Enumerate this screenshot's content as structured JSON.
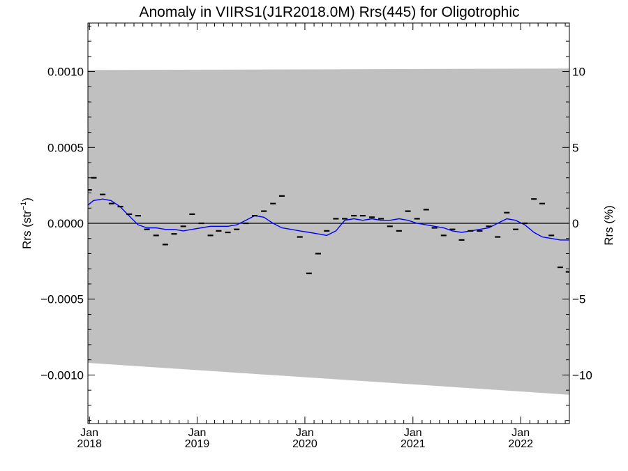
{
  "chart_data": {
    "type": "scatter",
    "title": "Anomaly in VIIRS1(J1R2018.0M) Rrs(445) for Oligotrophic",
    "ylabel_left": "Rrs (str",
    "ylabel_left_sup": "−1",
    "ylabel_left_close": ")",
    "ylabel_right": "Rrs (%)",
    "xlim": [
      "2017-12-27",
      "2022-06-15"
    ],
    "ylim": [
      -0.00132,
      0.00132
    ],
    "ylim_right": [
      -13.2,
      13.2
    ],
    "grid": false,
    "x_ticks": [
      {
        "date": "2018-01-01",
        "line1": "Jan",
        "line2": "2018"
      },
      {
        "date": "2019-01-01",
        "line1": "Jan",
        "line2": "2019"
      },
      {
        "date": "2020-01-01",
        "line1": "Jan",
        "line2": "2020"
      },
      {
        "date": "2021-01-01",
        "line1": "Jan",
        "line2": "2021"
      },
      {
        "date": "2022-01-01",
        "line1": "Jan",
        "line2": "2022"
      }
    ],
    "y_ticks": [
      {
        "value": 0.001,
        "label": "0.0010"
      },
      {
        "value": 0.0005,
        "label": "0.0005"
      },
      {
        "value": 0.0,
        "label": "0.0000"
      },
      {
        "value": -0.0005,
        "label": "−0.0005"
      },
      {
        "value": -0.001,
        "label": "−0.0010"
      }
    ],
    "y_ticks_right": [
      {
        "value": 10,
        "label": "10"
      },
      {
        "value": 5,
        "label": "5"
      },
      {
        "value": 0,
        "label": "0"
      },
      {
        "value": -5,
        "label": "−5"
      },
      {
        "value": -10,
        "label": "−10"
      }
    ],
    "envelope": {
      "x": [
        "2017-12-27",
        "2022-06-15"
      ],
      "upper": [
        0.00101,
        0.00102
      ],
      "lower": [
        -0.00092,
        -0.00113
      ],
      "color": "#c0c0c0"
    },
    "zero_line_color": "#000000",
    "points": {
      "color": "#000000",
      "x": [
        "2017-12-31",
        "2018-01-16",
        "2018-02-15",
        "2018-03-17",
        "2018-04-16",
        "2018-05-16",
        "2018-06-15",
        "2018-07-15",
        "2018-08-15",
        "2018-09-15",
        "2018-10-15",
        "2018-11-15",
        "2018-12-15",
        "2019-01-15",
        "2019-02-15",
        "2019-03-15",
        "2019-04-15",
        "2019-05-15",
        "2019-06-15",
        "2019-07-15",
        "2019-08-15",
        "2019-09-15",
        "2019-10-15",
        "2019-12-15",
        "2020-01-15",
        "2020-02-15",
        "2020-03-15",
        "2020-04-15",
        "2020-05-15",
        "2020-06-15",
        "2020-07-15",
        "2020-08-15",
        "2020-09-15",
        "2020-10-15",
        "2020-11-15",
        "2020-12-15",
        "2021-01-15",
        "2021-02-15",
        "2021-03-15",
        "2021-04-15",
        "2021-05-15",
        "2021-06-15",
        "2021-07-15",
        "2021-08-15",
        "2021-09-15",
        "2021-10-15",
        "2021-11-15",
        "2021-12-15",
        "2022-01-15",
        "2022-02-15",
        "2022-03-15",
        "2022-04-15",
        "2022-05-15",
        "2022-06-12"
      ],
      "values": [
        0.00022,
        0.0003,
        0.00019,
        0.00013,
        0.00011,
        6e-05,
        5e-05,
        -4e-05,
        -8e-05,
        -0.00014,
        -7e-05,
        -2e-05,
        6e-05,
        0.0,
        -8e-05,
        -5e-05,
        -6e-05,
        -4e-05,
        0.0,
        5e-05,
        8e-05,
        0.00013,
        0.00018,
        -9e-05,
        -0.00033,
        -0.0002,
        -5e-05,
        3e-05,
        3e-05,
        5e-05,
        5e-05,
        4e-05,
        3e-05,
        -2e-05,
        -5e-05,
        8e-05,
        3e-05,
        9e-05,
        -3e-05,
        -8e-05,
        -4e-05,
        -0.00011,
        -5e-05,
        -5e-05,
        -2e-05,
        -9e-05,
        7e-05,
        -4e-05,
        0.0,
        0.00016,
        0.00013,
        -8e-05,
        -0.00029,
        -0.00032
      ]
    },
    "smooth_line": {
      "color": "#0000ff",
      "x": [
        "2017-12-27",
        "2018-01-15",
        "2018-02-15",
        "2018-03-15",
        "2018-04-15",
        "2018-05-15",
        "2018-06-15",
        "2018-07-15",
        "2018-08-15",
        "2018-09-15",
        "2018-10-15",
        "2018-11-15",
        "2018-12-15",
        "2019-01-15",
        "2019-02-15",
        "2019-03-15",
        "2019-04-15",
        "2019-05-15",
        "2019-06-15",
        "2019-07-15",
        "2019-08-15",
        "2019-09-15",
        "2019-10-15",
        "2019-11-15",
        "2019-12-15",
        "2020-01-15",
        "2020-02-15",
        "2020-03-15",
        "2020-04-15",
        "2020-05-15",
        "2020-06-15",
        "2020-07-15",
        "2020-08-15",
        "2020-09-15",
        "2020-10-15",
        "2020-11-15",
        "2020-12-15",
        "2021-01-15",
        "2021-02-15",
        "2021-03-15",
        "2021-04-15",
        "2021-05-15",
        "2021-06-15",
        "2021-07-15",
        "2021-08-15",
        "2021-09-15",
        "2021-10-15",
        "2021-11-15",
        "2021-12-15",
        "2022-01-15",
        "2022-02-15",
        "2022-03-15",
        "2022-04-15",
        "2022-05-15",
        "2022-06-15"
      ],
      "values": [
        0.00012,
        0.00015,
        0.00016,
        0.00015,
        0.00011,
        5e-05,
        -1e-05,
        -3e-05,
        -3e-05,
        -4e-05,
        -4e-05,
        -5e-05,
        -4e-05,
        -3e-05,
        -2e-05,
        -2e-05,
        -2e-05,
        -1e-05,
        2e-05,
        5e-05,
        4e-05,
        0.0,
        -3e-05,
        -4e-05,
        -5e-05,
        -6e-05,
        -7e-05,
        -8e-05,
        -5e-05,
        2e-05,
        3e-05,
        2e-05,
        3e-05,
        2e-05,
        2e-05,
        3e-05,
        2e-05,
        0.0,
        -1e-05,
        -2e-05,
        -3e-05,
        -5e-05,
        -6e-05,
        -5e-05,
        -4e-05,
        -3e-05,
        0.0,
        3e-05,
        2e-05,
        -1e-05,
        -6e-05,
        -9e-05,
        -0.0001,
        -0.00011,
        -0.00011
      ]
    }
  }
}
